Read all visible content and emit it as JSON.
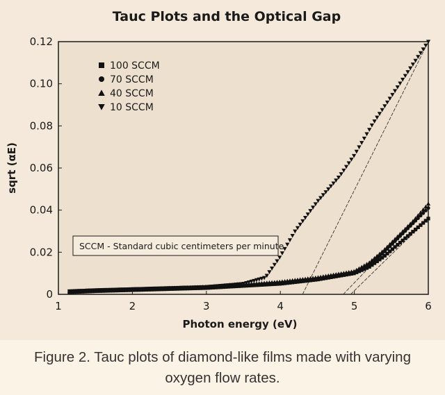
{
  "chart_data": {
    "type": "scatter",
    "title": "Tauc Plots and the Optical Gap",
    "xlabel": "Photon energy (eV)",
    "ylabel": "sqrt (αE)",
    "xlim": [
      1,
      6
    ],
    "ylim": [
      0,
      0.12
    ],
    "xticks": [
      "1",
      "2",
      "3",
      "4",
      "5",
      "6"
    ],
    "yticks": [
      "0",
      "0.02",
      "0.04",
      "0.06",
      "0.08",
      "0.10",
      "0.12"
    ],
    "grid": false,
    "legend_position": "top-left",
    "annotation": "SCCM - Standard cubic centimeters per minute",
    "series": [
      {
        "name": "100 SCCM",
        "marker": "square",
        "x": [
          1.15,
          1.5,
          2.0,
          2.5,
          3.0,
          3.5,
          4.0,
          4.5,
          5.0,
          5.2,
          5.4,
          5.6,
          5.8,
          6.0
        ],
        "y": [
          0.001,
          0.0015,
          0.002,
          0.0025,
          0.003,
          0.004,
          0.005,
          0.007,
          0.01,
          0.013,
          0.018,
          0.024,
          0.03,
          0.036
        ]
      },
      {
        "name": "70 SCCM",
        "marker": "circle",
        "x": [
          1.15,
          1.5,
          2.0,
          2.5,
          3.0,
          3.5,
          4.0,
          4.5,
          5.0,
          5.2,
          5.4,
          5.6,
          5.8,
          6.0
        ],
        "y": [
          0.0012,
          0.0017,
          0.0022,
          0.0027,
          0.0033,
          0.0043,
          0.0055,
          0.0075,
          0.0105,
          0.014,
          0.02,
          0.027,
          0.034,
          0.041
        ]
      },
      {
        "name": "40 SCCM",
        "marker": "triangle-up",
        "x": [
          1.15,
          1.5,
          2.0,
          2.5,
          3.0,
          3.5,
          4.0,
          4.5,
          5.0,
          5.2,
          5.4,
          5.6,
          5.8,
          6.0
        ],
        "y": [
          0.0014,
          0.0019,
          0.0024,
          0.003,
          0.0036,
          0.0046,
          0.006,
          0.008,
          0.011,
          0.015,
          0.021,
          0.028,
          0.035,
          0.043
        ]
      },
      {
        "name": "10 SCCM",
        "marker": "triangle-down",
        "x": [
          1.15,
          1.5,
          2.0,
          2.5,
          3.0,
          3.5,
          3.8,
          4.0,
          4.2,
          4.5,
          4.8,
          5.0,
          5.25,
          5.5,
          5.75,
          6.0
        ],
        "y": [
          0.0015,
          0.002,
          0.0025,
          0.003,
          0.0035,
          0.005,
          0.008,
          0.018,
          0.03,
          0.044,
          0.056,
          0.066,
          0.081,
          0.094,
          0.107,
          0.12
        ]
      }
    ],
    "fit_lines": [
      {
        "x": [
          4.3,
          6.0
        ],
        "y": [
          0.0,
          0.12
        ]
      },
      {
        "x": [
          4.85,
          6.0
        ],
        "y": [
          0.0,
          0.042
        ]
      },
      {
        "x": [
          4.95,
          6.0
        ],
        "y": [
          0.0,
          0.036
        ]
      }
    ]
  },
  "caption": "Figure 2. Tauc plots of diamond-like films made with varying oxygen flow rates.",
  "colors": {
    "plot_bg": "#ede0cf",
    "page_bg": "#f4e9da",
    "marker": "#111111"
  }
}
